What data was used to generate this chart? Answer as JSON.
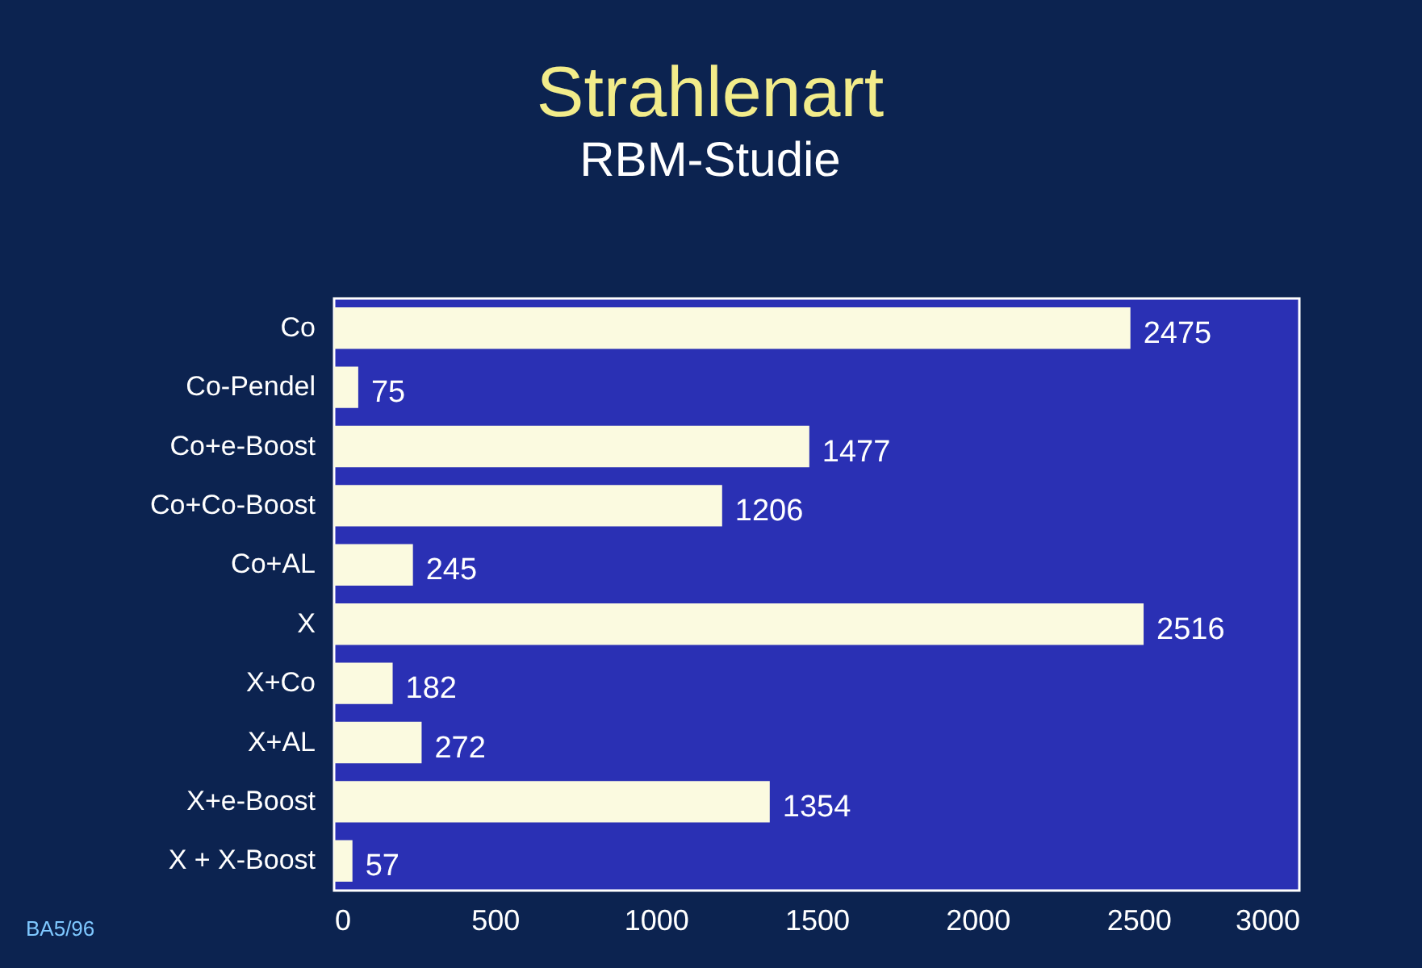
{
  "chart_data": {
    "type": "bar",
    "orientation": "horizontal",
    "title": "Strahlenart",
    "subtitle": "RBM-Studie",
    "categories": [
      "Co",
      "Co-Pendel",
      "Co+e-Boost",
      "Co+Co-Boost",
      "Co+AL",
      "X",
      "X+Co",
      "X+AL",
      "X+e-Boost",
      "X + X-Boost"
    ],
    "values": [
      2475,
      75,
      1477,
      1206,
      245,
      2516,
      182,
      272,
      1354,
      57
    ],
    "color": "#fbfae0",
    "data_labels": true,
    "xlim": [
      0,
      3000
    ],
    "xticks": [
      0,
      500,
      1000,
      1500,
      2000,
      2500,
      3000
    ],
    "grid": false,
    "annotations": [
      "BA5/96"
    ]
  }
}
